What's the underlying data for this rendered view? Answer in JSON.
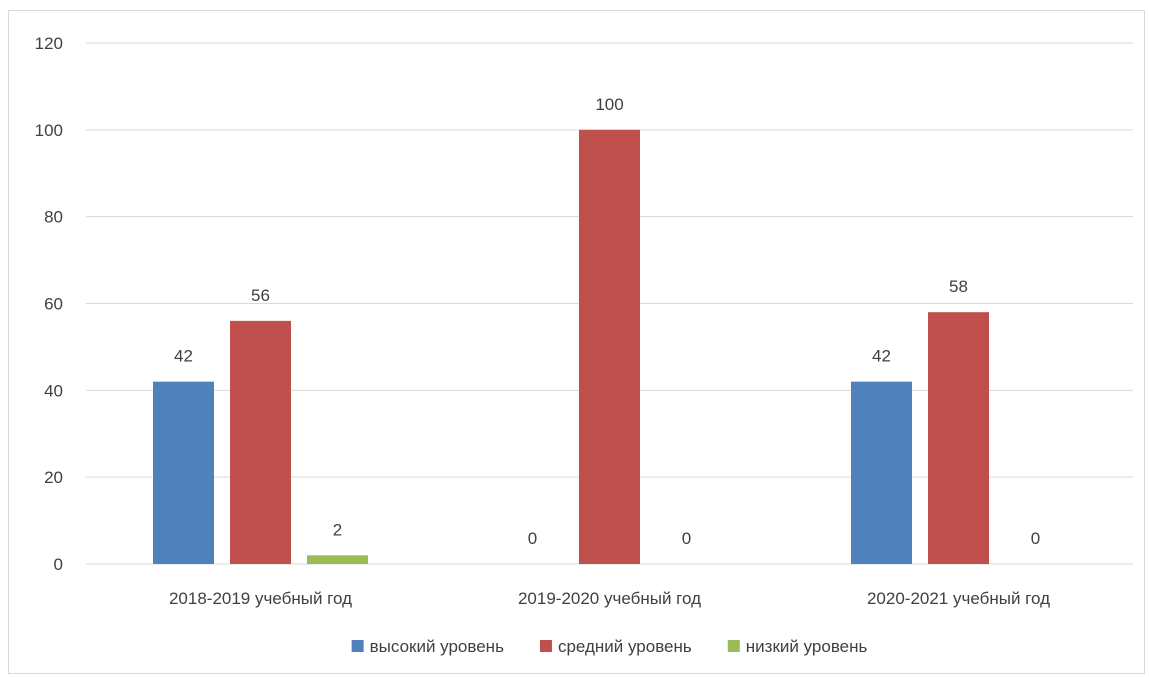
{
  "chart_data": {
    "type": "bar",
    "categories": [
      "2018-2019 учебный год",
      "2019-2020 учебный год",
      "2020-2021 учебный год"
    ],
    "series": [
      {
        "name": "высокий уровень",
        "values": [
          42,
          0,
          42
        ],
        "color": "#4F81BD"
      },
      {
        "name": "средний уровень",
        "values": [
          56,
          100,
          58
        ],
        "color": "#C0504D"
      },
      {
        "name": "низкий уровень",
        "values": [
          2,
          0,
          0
        ],
        "color": "#9BBB59"
      }
    ],
    "title": "",
    "xlabel": "",
    "ylabel": "",
    "ylim": [
      0,
      120
    ],
    "yticks": [
      0,
      20,
      40,
      60,
      80,
      100,
      120
    ],
    "data_labels": true,
    "grid": true,
    "legend_position": "bottom"
  }
}
